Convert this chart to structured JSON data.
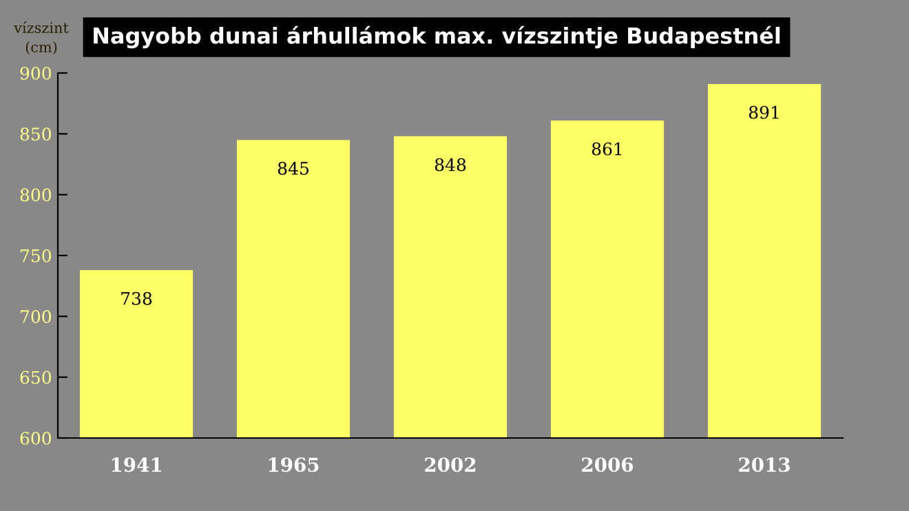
{
  "chart_data": {
    "type": "bar",
    "title": "Nagyobb dunai árhullámok max. vízszintje Budapestnél",
    "ylabel": "vízszint\n(cm)",
    "categories": [
      "1941",
      "1965",
      "2002",
      "2006",
      "2013"
    ],
    "values": [
      738,
      845,
      848,
      861,
      891
    ],
    "color": "#ffff66",
    "ylim": [
      600,
      900
    ],
    "yticks": [
      600,
      650,
      700,
      750,
      800,
      850,
      900
    ],
    "data_labels": true,
    "grid": false,
    "legend": false
  }
}
